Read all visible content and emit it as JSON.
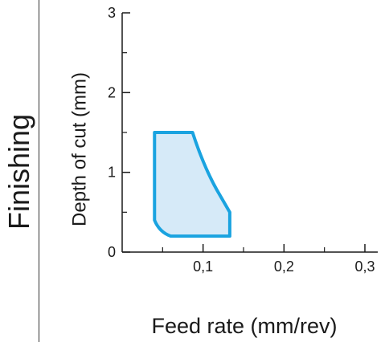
{
  "panel_label": "Finishing",
  "chart_data": {
    "type": "area",
    "title": "",
    "xlabel": "Feed rate (mm/rev)",
    "ylabel": "Depth of cut (mm)",
    "xlim": [
      0,
      0.3
    ],
    "ylim": [
      0,
      3
    ],
    "x_ticks": [
      {
        "value": 0.1,
        "label": "0,1"
      },
      {
        "value": 0.2,
        "label": "0,2"
      },
      {
        "value": 0.3,
        "label": "0,3"
      }
    ],
    "y_ticks": [
      {
        "value": 0,
        "label": "0"
      },
      {
        "value": 1,
        "label": "1"
      },
      {
        "value": 2,
        "label": "2"
      },
      {
        "value": 3,
        "label": "3"
      }
    ],
    "minor_y_ticks": [
      0.5,
      1.5,
      2.5
    ],
    "minor_x_ticks": [
      0.05,
      0.15,
      0.25
    ],
    "region": {
      "name": "",
      "fill_color": "#d6eaf8",
      "stroke_color": "#1aa3e0",
      "points": [
        [
          0.04,
          1.5
        ],
        [
          0.087,
          1.5
        ],
        [
          0.095,
          1.25
        ],
        [
          0.105,
          1.0
        ],
        [
          0.117,
          0.78
        ],
        [
          0.133,
          0.5
        ],
        [
          0.133,
          0.2
        ],
        [
          0.06,
          0.2
        ],
        [
          0.046,
          0.25
        ],
        [
          0.04,
          0.4
        ]
      ]
    },
    "grid": false,
    "legend": "none"
  }
}
